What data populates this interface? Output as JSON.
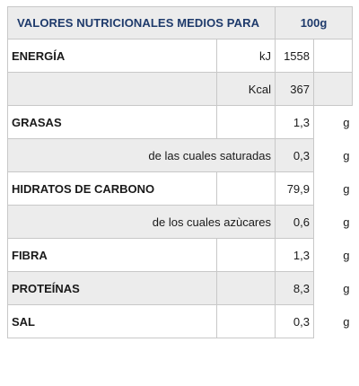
{
  "header": {
    "title": "VALORES NUTRICIONALES MEDIOS PARA",
    "per": "100g"
  },
  "rows": [
    {
      "label": "ENERGÍA",
      "sub": "kJ",
      "value": "1558",
      "unit": ""
    },
    {
      "label": "",
      "sub": "Kcal",
      "value": "367",
      "unit": ""
    },
    {
      "label": "GRASAS",
      "sub": "",
      "value": "1,3",
      "unit": "g"
    },
    {
      "label": "",
      "sub": "de las cuales saturadas",
      "value": "0,3",
      "unit": "g"
    },
    {
      "label": "HIDRATOS DE CARBONO",
      "sub": "",
      "value": "79,9",
      "unit": "g"
    },
    {
      "label": "",
      "sub": "de los cuales azùcares",
      "value": "0,6",
      "unit": "g"
    },
    {
      "label": "FIBRA",
      "sub": "",
      "value": "1,3",
      "unit": "g"
    },
    {
      "label": "PROTEÍNAS",
      "sub": "",
      "value": "8,3",
      "unit": "g"
    },
    {
      "label": "SAL",
      "sub": "",
      "value": "0,3",
      "unit": "g"
    }
  ]
}
